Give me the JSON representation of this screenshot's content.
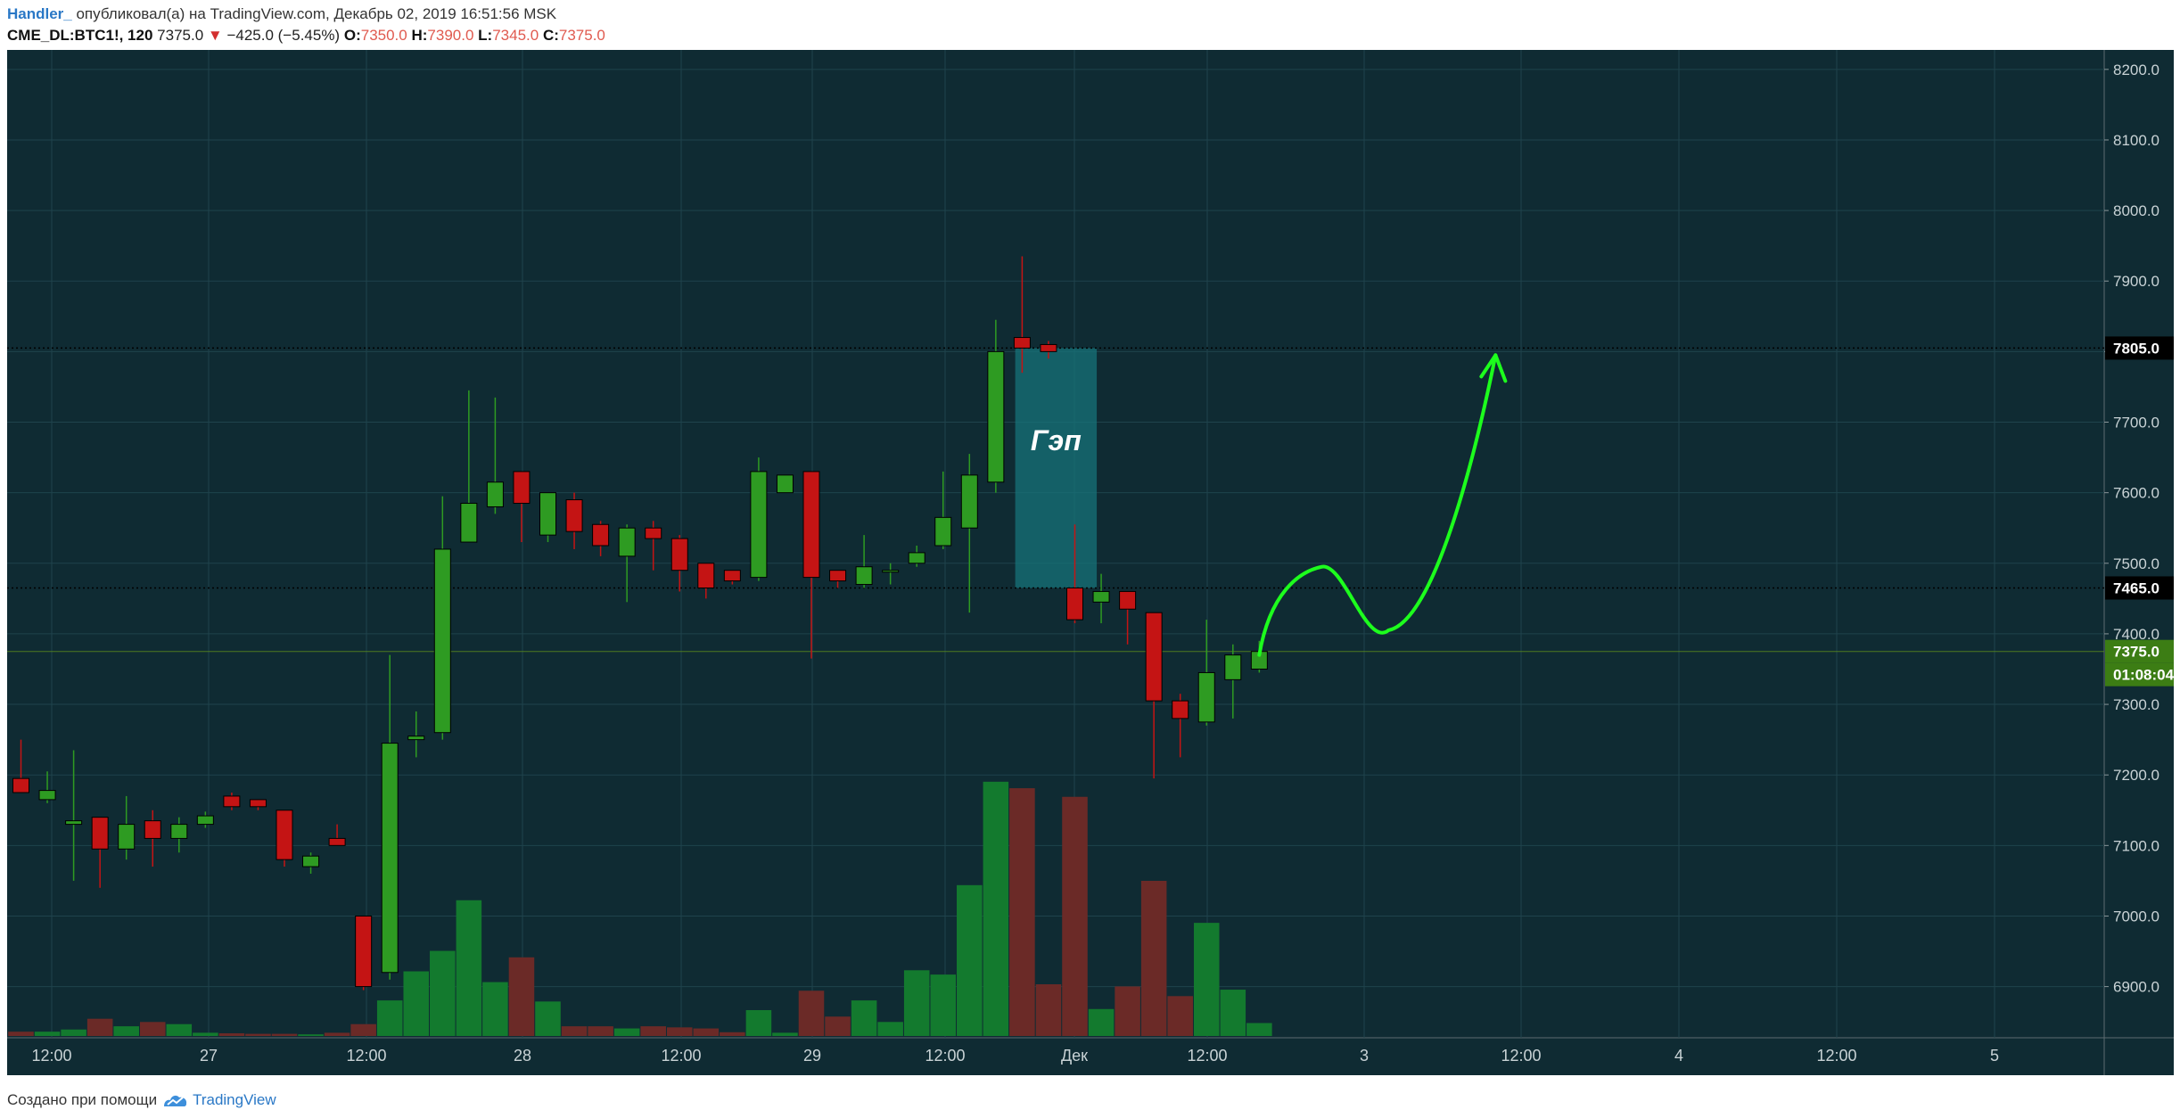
{
  "header": {
    "author": "Handler_",
    "published_text": " опубликовал(а) на TradingView.com, Декабрь 02, 2019 16:51:56 MSK",
    "symbol": "CME_DL:BTC1!, 120",
    "last": "7375.0",
    "change": "−425.0 (−5.45%)",
    "open_label": "O:",
    "open": "7350.0",
    "high_label": "H:",
    "high": "7390.0",
    "low_label": "L:",
    "low": "7345.0",
    "close_label": "C:",
    "close": "7375.0"
  },
  "footer": {
    "created_with": "Создано при помощи",
    "brand": "TradingView"
  },
  "chart_data": {
    "type": "candlestick",
    "interval": "120",
    "ylim": [
      6830,
      8220
    ],
    "y_ticks": [
      6900,
      7000,
      7100,
      7200,
      7300,
      7400,
      7500,
      7600,
      7700,
      7800,
      7900,
      8000,
      8100,
      8200
    ],
    "y_tick_labels": [
      "6900.0",
      "7000.0",
      "7100.0",
      "7200.0",
      "7300.0",
      "7400.0",
      "7500.0",
      "7600.0",
      "7700.0",
      "7800.0",
      "7900.0",
      "8000.0",
      "8100.0",
      "8200.0"
    ],
    "x_tick_labels": [
      "12:00",
      "27",
      "12:00",
      "28",
      "12:00",
      "29",
      "12:00",
      "Дек",
      "12:00",
      "3",
      "12:00",
      "4",
      "12:00",
      "5"
    ],
    "candles": [
      {
        "o": 7195,
        "h": 7250,
        "l": 7185,
        "c": 7175,
        "v": 40
      },
      {
        "o": 7165,
        "h": 7205,
        "l": 7160,
        "c": 7178,
        "v": 40
      },
      {
        "o": 7130,
        "h": 7235,
        "l": 7050,
        "c": 7135,
        "v": 60
      },
      {
        "o": 7140,
        "h": 7140,
        "l": 7040,
        "c": 7095,
        "v": 160
      },
      {
        "o": 7095,
        "h": 7170,
        "l": 7080,
        "c": 7130,
        "v": 90
      },
      {
        "o": 7135,
        "h": 7150,
        "l": 7070,
        "c": 7110,
        "v": 130
      },
      {
        "o": 7110,
        "h": 7140,
        "l": 7090,
        "c": 7130,
        "v": 110
      },
      {
        "o": 7130,
        "h": 7148,
        "l": 7125,
        "c": 7142,
        "v": 30
      },
      {
        "o": 7170,
        "h": 7175,
        "l": 7150,
        "c": 7155,
        "v": 25
      },
      {
        "o": 7165,
        "h": 7165,
        "l": 7150,
        "c": 7155,
        "v": 20
      },
      {
        "o": 7150,
        "h": 7150,
        "l": 7070,
        "c": 7080,
        "v": 20
      },
      {
        "o": 7070,
        "h": 7090,
        "l": 7060,
        "c": 7085,
        "v": 15
      },
      {
        "o": 7110,
        "h": 7130,
        "l": 7100,
        "c": 7100,
        "v": 30
      },
      {
        "o": 7000,
        "h": 7000,
        "l": 6895,
        "c": 6900,
        "v": 110
      },
      {
        "o": 6920,
        "h": 7370,
        "l": 6910,
        "c": 7245,
        "v": 330
      },
      {
        "o": 7250,
        "h": 7290,
        "l": 7225,
        "c": 7255,
        "v": 600
      },
      {
        "o": 7260,
        "h": 7595,
        "l": 7250,
        "c": 7520,
        "v": 790
      },
      {
        "o": 7530,
        "h": 7745,
        "l": 7530,
        "c": 7585,
        "v": 1260
      },
      {
        "o": 7580,
        "h": 7735,
        "l": 7570,
        "c": 7615,
        "v": 500
      },
      {
        "o": 7630,
        "h": 7630,
        "l": 7530,
        "c": 7585,
        "v": 730
      },
      {
        "o": 7540,
        "h": 7600,
        "l": 7530,
        "c": 7600,
        "v": 320
      },
      {
        "o": 7590,
        "h": 7600,
        "l": 7520,
        "c": 7545,
        "v": 90
      },
      {
        "o": 7555,
        "h": 7560,
        "l": 7510,
        "c": 7525,
        "v": 90
      },
      {
        "o": 7510,
        "h": 7555,
        "l": 7445,
        "c": 7550,
        "v": 70
      },
      {
        "o": 7550,
        "h": 7560,
        "l": 7490,
        "c": 7535,
        "v": 90
      },
      {
        "o": 7535,
        "h": 7540,
        "l": 7460,
        "c": 7490,
        "v": 80
      },
      {
        "o": 7500,
        "h": 7500,
        "l": 7450,
        "c": 7465,
        "v": 70
      },
      {
        "o": 7490,
        "h": 7490,
        "l": 7470,
        "c": 7475,
        "v": 35
      },
      {
        "o": 7480,
        "h": 7650,
        "l": 7475,
        "c": 7630,
        "v": 240
      },
      {
        "o": 7600,
        "h": 7625,
        "l": 7600,
        "c": 7625,
        "v": 30
      },
      {
        "o": 7630,
        "h": 7630,
        "l": 7365,
        "c": 7480,
        "v": 420
      },
      {
        "o": 7490,
        "h": 7490,
        "l": 7465,
        "c": 7475,
        "v": 180
      },
      {
        "o": 7470,
        "h": 7540,
        "l": 7465,
        "c": 7495,
        "v": 330
      },
      {
        "o": 7490,
        "h": 7500,
        "l": 7470,
        "c": 7490,
        "v": 130
      },
      {
        "o": 7500,
        "h": 7525,
        "l": 7495,
        "c": 7515,
        "v": 610
      },
      {
        "o": 7525,
        "h": 7630,
        "l": 7520,
        "c": 7565,
        "v": 570
      },
      {
        "o": 7550,
        "h": 7655,
        "l": 7430,
        "c": 7625,
        "v": 1400
      },
      {
        "o": 7615,
        "h": 7845,
        "l": 7600,
        "c": 7800,
        "v": 2360
      },
      {
        "o": 7820,
        "h": 7935,
        "l": 7770,
        "c": 7805,
        "v": 2300
      },
      {
        "o": 7810,
        "h": 7815,
        "l": 7790,
        "c": 7800,
        "v": 480
      },
      {
        "o": 7465,
        "h": 7555,
        "l": 7415,
        "c": 7420,
        "v": 2220
      },
      {
        "o": 7445,
        "h": 7485,
        "l": 7415,
        "c": 7460,
        "v": 250
      },
      {
        "o": 7460,
        "h": 7460,
        "l": 7385,
        "c": 7435,
        "v": 460
      },
      {
        "o": 7430,
        "h": 7430,
        "l": 7195,
        "c": 7305,
        "v": 1440
      },
      {
        "o": 7305,
        "h": 7315,
        "l": 7225,
        "c": 7280,
        "v": 370
      },
      {
        "o": 7275,
        "h": 7420,
        "l": 7270,
        "c": 7345,
        "v": 1050
      },
      {
        "o": 7335,
        "h": 7385,
        "l": 7280,
        "c": 7370,
        "v": 430
      },
      {
        "o": 7350,
        "h": 7390,
        "l": 7345,
        "c": 7375,
        "v": 120
      }
    ],
    "levels": [
      {
        "price": 7805,
        "label": "7805.0",
        "style": "dotted"
      },
      {
        "price": 7465,
        "label": "7465.0",
        "style": "dotted"
      },
      {
        "price": 7375,
        "label": "7375.0",
        "style": "current"
      }
    ],
    "countdown": "01:08:04",
    "gap_box": {
      "price_top": 7805,
      "price_bottom": 7465,
      "label": "Гэп"
    },
    "colors": {
      "background": "#0f2b33",
      "up": "#2e9b22",
      "down": "#c41414",
      "vol_up": "#137a2e",
      "vol_down": "#6b2a27",
      "gap": "#17737a",
      "forecast": "#1dff1d",
      "price_bg": "#3c7d14"
    }
  }
}
